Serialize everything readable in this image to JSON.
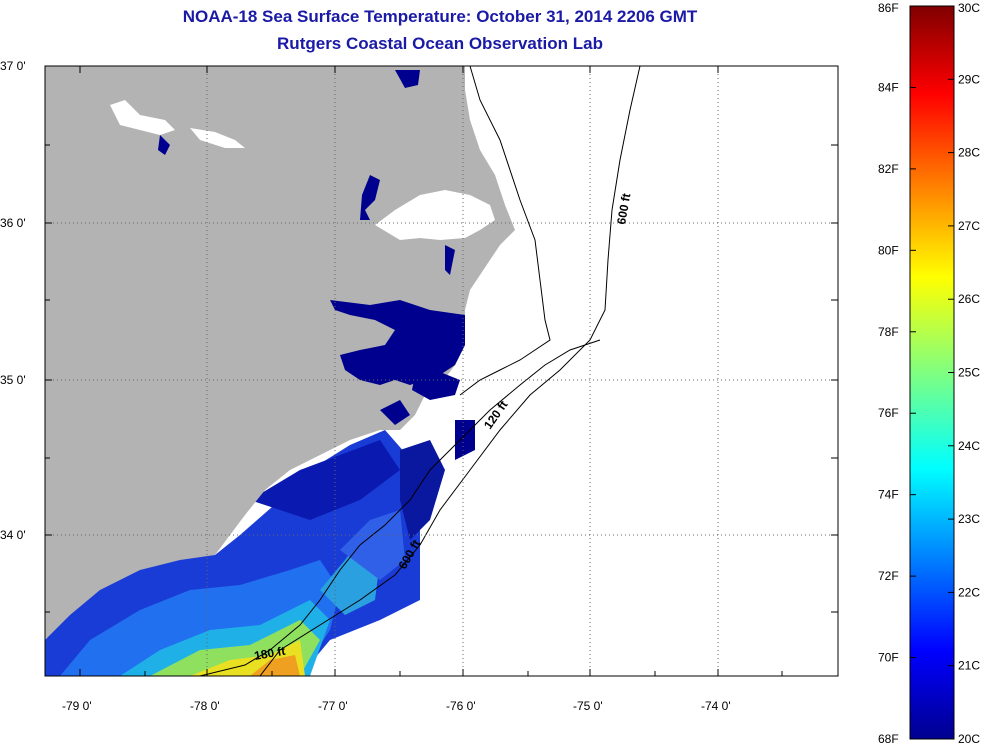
{
  "title": {
    "line1": "NOAA-18 Sea Surface Temperature:  October 31, 2014 2206 GMT",
    "line2": "Rutgers Coastal Ocean Observation Lab"
  },
  "map": {
    "lat_labels": [
      "37 0'",
      "36 0'",
      "35 0'",
      "34 0'"
    ],
    "lon_labels": [
      "-79 0'",
      "-78 0'",
      "-77 0'",
      "-76 0'",
      "-75 0'",
      "-74 0'"
    ],
    "contour_labels": [
      "600 ft",
      "120 ft",
      "600 ft",
      "180 ft"
    ],
    "colors": {
      "land": "#b3b3b3",
      "water_cold": "#00008f",
      "border": "#000000"
    }
  },
  "colorbar": {
    "f_labels": [
      "86F",
      "84F",
      "82F",
      "80F",
      "78F",
      "76F",
      "74F",
      "72F",
      "70F",
      "68F"
    ],
    "c_labels": [
      "30C",
      "29C",
      "28C",
      "27C",
      "26C",
      "25C",
      "24C",
      "23C",
      "22C",
      "21C",
      "20C"
    ],
    "range_f": [
      68,
      86
    ],
    "range_c": [
      20,
      30
    ],
    "colormap": "jet"
  }
}
